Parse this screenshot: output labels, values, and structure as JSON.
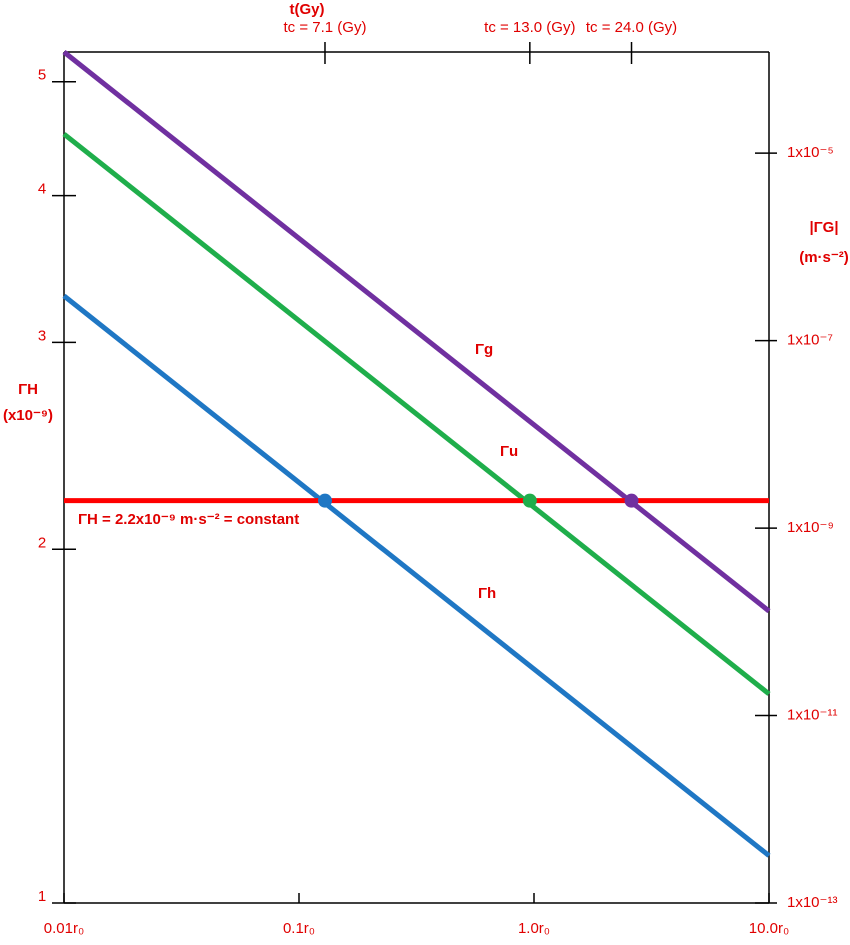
{
  "chart_data": {
    "type": "line",
    "title": "t(Gy)",
    "y_label": [
      "ΓH",
      "(x10⁻⁹)"
    ],
    "y2_label": [
      "|ΓG|",
      "(m·s⁻²)"
    ],
    "xscale": "log",
    "yscale": "log",
    "y2scale": "log",
    "xlim": [
      0.01,
      10
    ],
    "ylim": [
      1,
      5.3
    ],
    "y2lim": [
      1e-13,
      0.00012
    ],
    "xticks": [
      {
        "value": 0.01,
        "label": "0.01r₀"
      },
      {
        "value": 0.1,
        "label": "0.1r₀"
      },
      {
        "value": 1,
        "label": "1.0r₀"
      },
      {
        "value": 10,
        "label": "10.0r₀"
      }
    ],
    "yticks": [
      1,
      2,
      3,
      4,
      5
    ],
    "y2ticks": [
      {
        "value": 1e-13,
        "label": "1x10⁻¹³"
      },
      {
        "value": 1e-11,
        "label": "1x10⁻¹¹"
      },
      {
        "value": 1e-09,
        "label": "1x10⁻⁹"
      },
      {
        "value": 1e-07,
        "label": "1x10⁻⁷"
      },
      {
        "value": 1e-05,
        "label": "1x10⁻⁵"
      }
    ],
    "x": [
      0.01,
      10
    ],
    "series": [
      {
        "name": "Γg",
        "color": "#7030a0",
        "axis": "y2",
        "values": [
          0.00012,
          1.3e-10
        ]
      },
      {
        "name": "Γu",
        "color": "#1fae4b",
        "axis": "y2",
        "values": [
          1.6e-05,
          1.7e-11
        ]
      },
      {
        "name": "Γh",
        "color": "#1f77c4",
        "axis": "y2",
        "values": [
          3e-07,
          3.2e-13
        ]
      },
      {
        "name": "ΓH = 2.2x10⁻⁹ m·s⁻² = constant",
        "color": "#ff0000",
        "axis": "y",
        "values": [
          2.2,
          2.2
        ]
      }
    ],
    "intersections": {
      "x": [
        0.129,
        0.96,
        2.6
      ],
      "colors": [
        "#1f77c4",
        "#1fae4b",
        "#7030a0"
      ],
      "labels": [
        "tc = 7.1 (Gy)",
        "tc = 13.0 (Gy)",
        "tc = 24.0 (Gy)"
      ]
    }
  }
}
